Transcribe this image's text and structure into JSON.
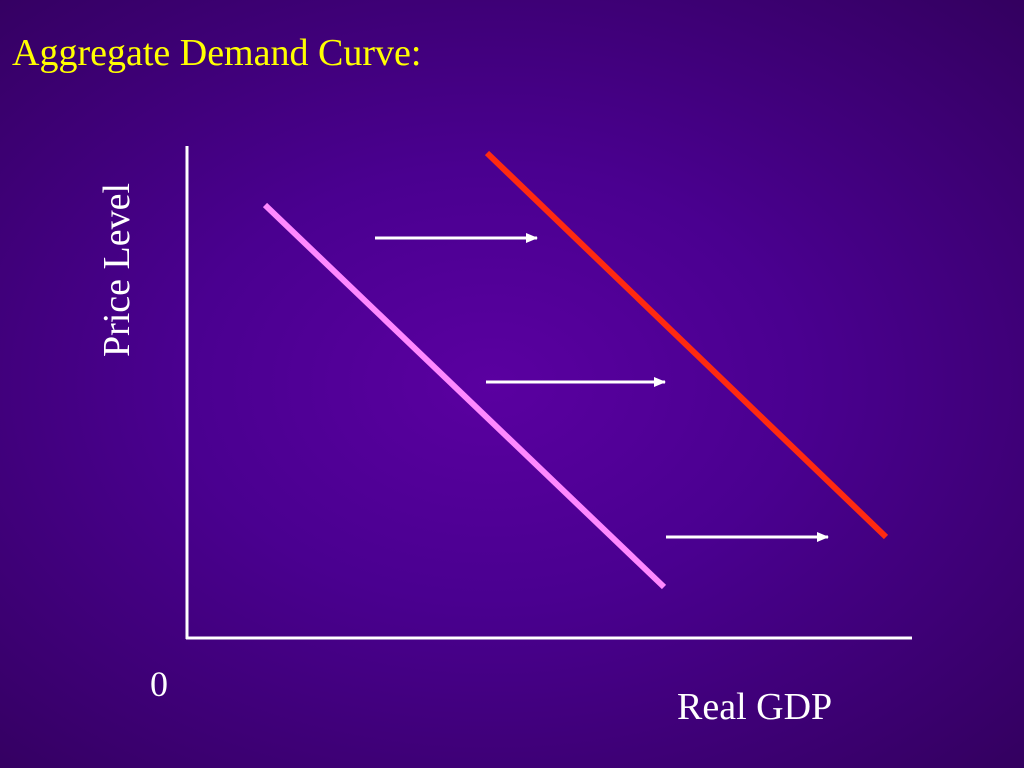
{
  "slide": {
    "title": "Aggregate Demand Curve:",
    "title_color": "#ffff00",
    "background_color": "#4a0090"
  },
  "diagram": {
    "y_axis_label": "Price Level",
    "x_axis_label": "Real GDP",
    "origin_label": "0",
    "curves": [
      {
        "id": "ad-original",
        "color": "#ff88ff"
      },
      {
        "id": "ad-shifted",
        "color": "#ff2a10"
      }
    ],
    "shift_direction": "right",
    "shift_arrow_count": 3,
    "arrow_color": "#ffffff",
    "axis_color": "#ffffff"
  }
}
